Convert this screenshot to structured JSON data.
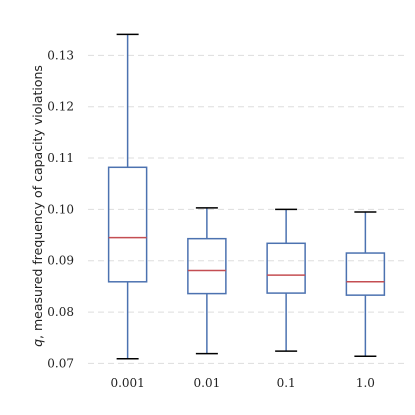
{
  "chart_data": {
    "type": "boxplot",
    "title": "",
    "xlabel": "",
    "ylabel": "q, measured frequency of capacity violations",
    "ylabel_italic_prefix": "q",
    "ylabel_rest": ", measured frequency of capacity violations",
    "categories": [
      "0.001",
      "0.01",
      "0.1",
      "1.0"
    ],
    "ylim": [
      0.0695,
      0.1365
    ],
    "yticks": [
      0.07,
      0.08,
      0.09,
      0.1,
      0.11,
      0.12,
      0.13
    ],
    "ytick_labels": [
      "0.07",
      "0.08",
      "0.09",
      "0.10",
      "0.11",
      "0.12",
      "0.13"
    ],
    "grid": {
      "y": true,
      "x": false,
      "style": "dashed"
    },
    "boxes": [
      {
        "category": "0.001",
        "whisker_low": 0.0709,
        "q1": 0.0859,
        "median": 0.0945,
        "q3": 0.1082,
        "whisker_high": 0.1341
      },
      {
        "category": "0.01",
        "whisker_low": 0.0719,
        "q1": 0.0836,
        "median": 0.0881,
        "q3": 0.0943,
        "whisker_high": 0.1003
      },
      {
        "category": "0.1",
        "whisker_low": 0.0724,
        "q1": 0.0837,
        "median": 0.0872,
        "q3": 0.0934,
        "whisker_high": 0.1
      },
      {
        "category": "1.0",
        "whisker_low": 0.0714,
        "q1": 0.0833,
        "median": 0.0859,
        "q3": 0.0915,
        "whisker_high": 0.0995
      }
    ],
    "colors": {
      "box": "#4c72b0",
      "whisker": "#4c72b0",
      "cap": "#000000",
      "median": "#c44e52",
      "grid": "#dddddd"
    }
  }
}
